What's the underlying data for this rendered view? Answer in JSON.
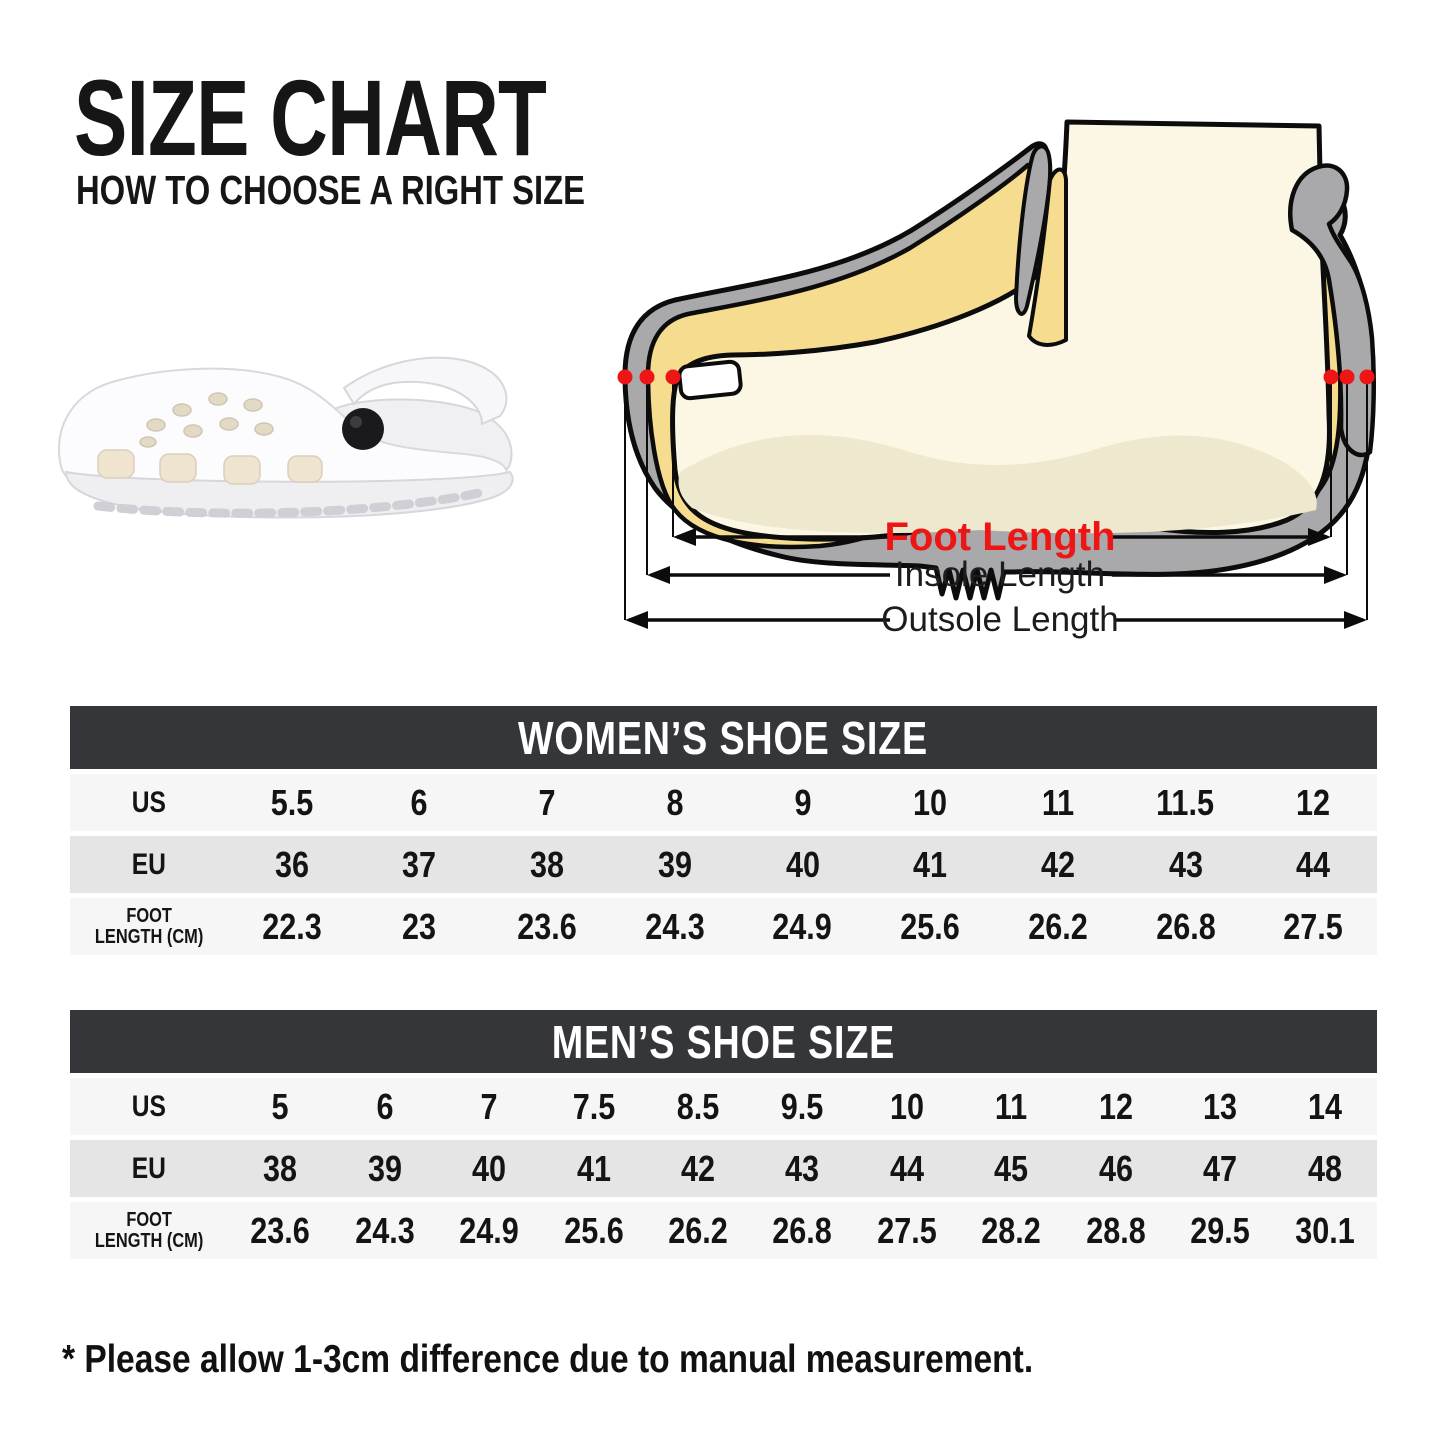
{
  "colors": {
    "accent_red": "#ee1515",
    "table_header_bg": "#343639",
    "row_light": "#f6f6f6",
    "row_dark": "#e5e5e6",
    "text_dark": "#141414",
    "outsole_gray": "#a9a9ab",
    "insole_yellow": "#f6dc8e",
    "foot_cream": "#fbf7e4",
    "foot_shade": "#eee8cf"
  },
  "header": {
    "title": "SIZE CHART",
    "subtitle": "HOW TO CHOOSE A RIGHT SIZE"
  },
  "diagram": {
    "foot_length_label": "Foot Length",
    "insole_length_label": "Insole Length",
    "outsole_length_label": "Outsole Length"
  },
  "tables": [
    {
      "title": "WOMEN’S SHOE SIZE",
      "rows": [
        {
          "label": "US",
          "values": [
            "5.5",
            "6",
            "7",
            "8",
            "9",
            "10",
            "11",
            "11.5",
            "12"
          ]
        },
        {
          "label": "EU",
          "values": [
            "36",
            "37",
            "38",
            "39",
            "40",
            "41",
            "42",
            "43",
            "44"
          ]
        },
        {
          "label": "FOOT\nLENGTH (CM)",
          "values": [
            "22.3",
            "23",
            "23.6",
            "24.3",
            "24.9",
            "25.6",
            "26.2",
            "26.8",
            "27.5"
          ]
        }
      ]
    },
    {
      "title": "MEN’S SHOE SIZE",
      "rows": [
        {
          "label": "US",
          "values": [
            "5",
            "6",
            "7",
            "7.5",
            "8.5",
            "9.5",
            "10",
            "11",
            "12",
            "13",
            "14"
          ]
        },
        {
          "label": "EU",
          "values": [
            "38",
            "39",
            "40",
            "41",
            "42",
            "43",
            "44",
            "45",
            "46",
            "47",
            "48"
          ]
        },
        {
          "label": "FOOT\nLENGTH (CM)",
          "values": [
            "23.6",
            "24.3",
            "24.9",
            "25.6",
            "26.2",
            "26.8",
            "27.5",
            "28.2",
            "28.8",
            "29.5",
            "30.1"
          ]
        }
      ]
    }
  ],
  "note": "* Please allow 1-3cm difference due to manual measurement."
}
